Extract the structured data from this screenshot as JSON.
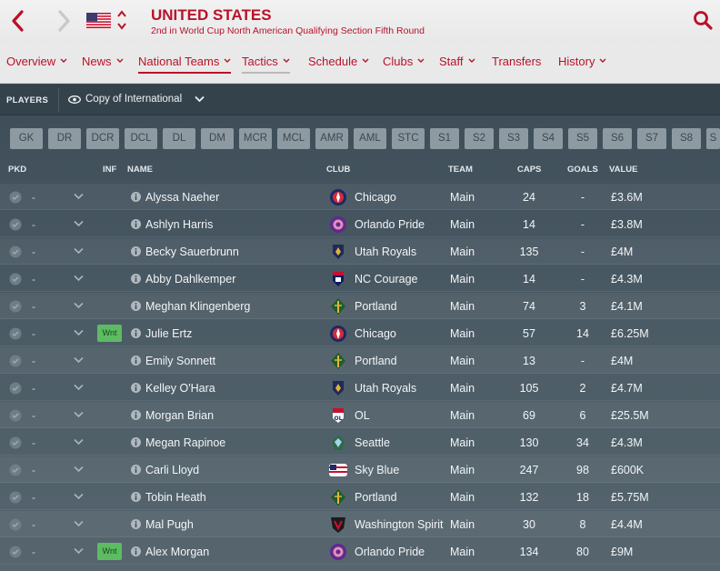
{
  "header": {
    "team_name": "UNITED STATES",
    "subtitle": "2nd in World Cup North American Qualifying Section Fifth Round",
    "accent_color": "#b8122a"
  },
  "nav": {
    "items": [
      {
        "label": "Overview",
        "has_menu": true
      },
      {
        "label": "News",
        "has_menu": true
      },
      {
        "label": "National Teams",
        "has_menu": true,
        "active": true
      },
      {
        "label": "Tactics",
        "has_menu": true
      },
      {
        "label": "Schedule",
        "has_menu": true
      },
      {
        "label": "Clubs",
        "has_menu": true
      },
      {
        "label": "Staff",
        "has_menu": true
      },
      {
        "label": "Transfers",
        "has_menu": false
      },
      {
        "label": "History",
        "has_menu": true
      }
    ]
  },
  "toolbar": {
    "players_label": "PLAYERS",
    "view_label": "Copy of International"
  },
  "positions": [
    "GK",
    "DR",
    "DCR",
    "DCL",
    "DL",
    "DM",
    "MCR",
    "MCL",
    "AMR",
    "AML",
    "STC",
    "S1",
    "S2",
    "S3",
    "S4",
    "S5",
    "S6",
    "S7",
    "S8",
    "S"
  ],
  "columns": {
    "pkd": "PKD",
    "inf": "INF",
    "name": "NAME",
    "club": "CLUB",
    "team": "TEAM",
    "caps": "CAPS",
    "goals": "GOALS",
    "value": "VALUE"
  },
  "players": [
    {
      "pkd": "-",
      "inf": "",
      "name": "Alyssa Naeher",
      "club": "Chicago",
      "club_icon": "chicago-crest-icon",
      "team": "Main",
      "caps": "24",
      "goals": "-",
      "value": "£3.6M"
    },
    {
      "pkd": "-",
      "inf": "",
      "name": "Ashlyn Harris",
      "club": "Orlando Pride",
      "club_icon": "orlando-crest-icon",
      "team": "Main",
      "caps": "14",
      "goals": "-",
      "value": "£3.8M"
    },
    {
      "pkd": "-",
      "inf": "",
      "name": "Becky Sauerbrunn",
      "club": "Utah Royals",
      "club_icon": "utah-crest-icon",
      "team": "Main",
      "caps": "135",
      "goals": "-",
      "value": "£4M"
    },
    {
      "pkd": "-",
      "inf": "",
      "name": "Abby Dahlkemper",
      "club": "NC Courage",
      "club_icon": "nc-crest-icon",
      "team": "Main",
      "caps": "14",
      "goals": "-",
      "value": "£4.3M"
    },
    {
      "pkd": "-",
      "inf": "",
      "name": "Meghan Klingenberg",
      "club": "Portland",
      "club_icon": "portland-crest-icon",
      "team": "Main",
      "caps": "74",
      "goals": "3",
      "value": "£4.1M"
    },
    {
      "pkd": "-",
      "inf": "Wnt",
      "name": "Julie Ertz",
      "club": "Chicago",
      "club_icon": "chicago-crest-icon",
      "team": "Main",
      "caps": "57",
      "goals": "14",
      "value": "£6.25M"
    },
    {
      "pkd": "-",
      "inf": "",
      "name": "Emily Sonnett",
      "club": "Portland",
      "club_icon": "portland-crest-icon",
      "team": "Main",
      "caps": "13",
      "goals": "-",
      "value": "£4M"
    },
    {
      "pkd": "-",
      "inf": "",
      "name": "Kelley O'Hara",
      "club": "Utah Royals",
      "club_icon": "utah-crest-icon",
      "team": "Main",
      "caps": "105",
      "goals": "2",
      "value": "£4.7M"
    },
    {
      "pkd": "-",
      "inf": "",
      "name": "Morgan Brian",
      "club": "OL",
      "club_icon": "ol-crest-icon",
      "team": "Main",
      "caps": "69",
      "goals": "6",
      "value": "£25.5M"
    },
    {
      "pkd": "-",
      "inf": "",
      "name": "Megan Rapinoe",
      "club": "Seattle",
      "club_icon": "seattle-crest-icon",
      "team": "Main",
      "caps": "130",
      "goals": "34",
      "value": "£4.3M"
    },
    {
      "pkd": "-",
      "inf": "",
      "name": "Carli Lloyd",
      "club": "Sky Blue",
      "club_icon": "skyblue-crest-icon",
      "team": "Main",
      "caps": "247",
      "goals": "98",
      "value": "£600K"
    },
    {
      "pkd": "-",
      "inf": "",
      "name": "Tobin Heath",
      "club": "Portland",
      "club_icon": "portland-crest-icon",
      "team": "Main",
      "caps": "132",
      "goals": "18",
      "value": "£5.75M"
    },
    {
      "pkd": "-",
      "inf": "",
      "name": "Mal Pugh",
      "club": "Washington Spirit",
      "club_icon": "washington-crest-icon",
      "team": "Main",
      "caps": "30",
      "goals": "8",
      "value": "£4.4M"
    },
    {
      "pkd": "-",
      "inf": "Wnt",
      "name": "Alex Morgan",
      "club": "Orlando Pride",
      "club_icon": "orlando-crest-icon",
      "team": "Main",
      "caps": "134",
      "goals": "80",
      "value": "£9M"
    }
  ]
}
